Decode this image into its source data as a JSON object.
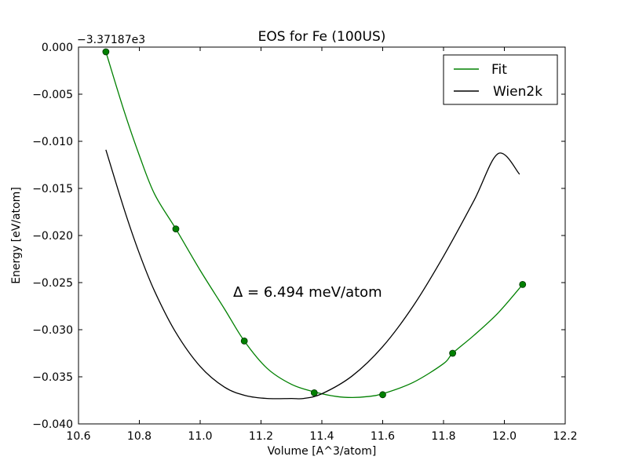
{
  "chart_data": {
    "type": "line",
    "title": "EOS for Fe (100US)",
    "xlabel": "Volume [A^3/atom]",
    "ylabel": "Energy [eV/atom]",
    "y_offset_label": "−3.37187e3",
    "xlim": [
      10.6,
      12.2
    ],
    "ylim": [
      -0.04,
      0.0
    ],
    "x_ticks": [
      10.6,
      10.8,
      11.0,
      11.2,
      11.4,
      11.6,
      11.8,
      12.0,
      12.2
    ],
    "x_tick_labels": [
      "10.6",
      "10.8",
      "11.0",
      "11.2",
      "11.4",
      "11.6",
      "11.8",
      "12.0",
      "12.2"
    ],
    "y_ticks": [
      0.0,
      -0.005,
      -0.01,
      -0.015,
      -0.02,
      -0.025,
      -0.03,
      -0.035,
      -0.04
    ],
    "y_tick_labels": [
      "0.000",
      "−0.005",
      "−0.010",
      "−0.015",
      "−0.020",
      "−0.025",
      "−0.030",
      "−0.035",
      "−0.040"
    ],
    "grid": false,
    "legend_position": "top-right",
    "annotation": "Δ = 6.494 meV/atom",
    "series": [
      {
        "name": "Fit",
        "color": "#008000",
        "x": [
          10.69,
          10.75,
          10.8,
          10.85,
          10.92,
          11.0,
          11.08,
          11.145,
          11.22,
          11.3,
          11.375,
          11.45,
          11.5,
          11.55,
          11.6,
          11.7,
          11.8,
          11.83,
          11.9,
          11.98,
          12.06
        ],
        "y": [
          -0.0005,
          -0.0068,
          -0.0115,
          -0.0156,
          -0.0193,
          -0.0237,
          -0.0278,
          -0.0312,
          -0.0341,
          -0.0358,
          -0.0366,
          -0.0371,
          -0.0372,
          -0.0371,
          -0.0368,
          -0.0356,
          -0.0336,
          -0.0325,
          -0.0306,
          -0.0282,
          -0.0252
        ]
      },
      {
        "name": "Wien2k",
        "color": "#000000",
        "x": [
          10.69,
          10.75,
          10.8,
          10.85,
          10.92,
          11.0,
          11.08,
          11.15,
          11.22,
          11.3,
          11.34,
          11.4,
          11.5,
          11.6,
          11.7,
          11.8,
          11.9,
          11.98,
          12.05
        ],
        "y": [
          -0.0109,
          -0.0172,
          -0.0219,
          -0.0259,
          -0.0303,
          -0.0339,
          -0.0361,
          -0.037,
          -0.0373,
          -0.0373,
          -0.0373,
          -0.0368,
          -0.0349,
          -0.0318,
          -0.0275,
          -0.0222,
          -0.0163,
          -0.0113,
          -0.0135
        ]
      }
    ],
    "points": {
      "name": "Fit data",
      "color": "#008000",
      "x": [
        10.69,
        10.92,
        11.145,
        11.375,
        11.6,
        11.83,
        12.06
      ],
      "y": [
        -0.0005,
        -0.0193,
        -0.0312,
        -0.0367,
        -0.0369,
        -0.0325,
        -0.0252
      ]
    }
  }
}
